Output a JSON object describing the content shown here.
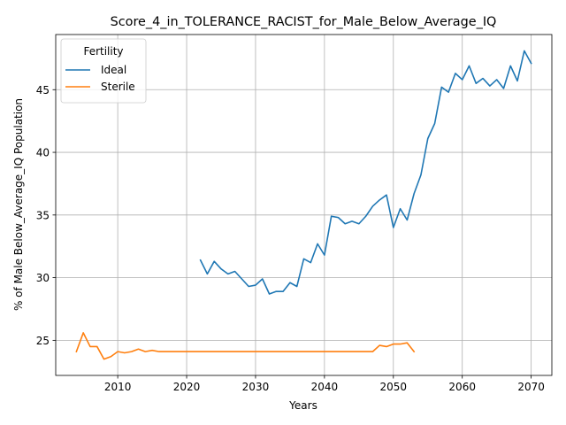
{
  "chart_data": {
    "type": "line",
    "title": "Score_4_in_TOLERANCE_RACIST_for_Male_Below_Average_IQ",
    "xlabel": "Years",
    "ylabel": "% of Male Below_Average_IQ Population",
    "xlim": [
      2001,
      2073
    ],
    "ylim": [
      22.2,
      49.4
    ],
    "xticks": [
      2010,
      2020,
      2030,
      2040,
      2050,
      2060,
      2070
    ],
    "yticks": [
      25,
      30,
      35,
      40,
      45
    ],
    "grid": true,
    "legend": {
      "title": "Fertility",
      "placement": "upper-left"
    },
    "series": [
      {
        "name": "Ideal",
        "color": "#1f77b4",
        "x": [
          2022,
          2023,
          2024,
          2025,
          2026,
          2027,
          2028,
          2029,
          2030,
          2031,
          2032,
          2033,
          2034,
          2035,
          2036,
          2037,
          2038,
          2039,
          2040,
          2041,
          2042,
          2043,
          2044,
          2045,
          2046,
          2047,
          2048,
          2049,
          2050,
          2051,
          2052,
          2053,
          2054,
          2055,
          2056,
          2057,
          2058,
          2059,
          2060,
          2061,
          2062,
          2063,
          2064,
          2065,
          2066,
          2067,
          2068,
          2069,
          2070
        ],
        "values": [
          31.4,
          30.3,
          31.3,
          30.7,
          30.3,
          30.5,
          29.9,
          29.3,
          29.4,
          29.9,
          28.7,
          28.9,
          28.9,
          29.6,
          29.3,
          31.5,
          31.2,
          32.7,
          31.8,
          34.9,
          34.8,
          34.3,
          34.5,
          34.3,
          34.9,
          35.7,
          36.2,
          36.6,
          34.0,
          35.5,
          34.6,
          36.7,
          38.2,
          41.1,
          42.3,
          45.2,
          44.8,
          46.3,
          45.8,
          46.9,
          45.5,
          45.9,
          45.3,
          45.8,
          45.1,
          46.9,
          45.7,
          48.1,
          47.1
        ]
      },
      {
        "name": "Sterile",
        "color": "#ff7f0e",
        "x": [
          2004,
          2005,
          2006,
          2007,
          2008,
          2009,
          2010,
          2011,
          2012,
          2013,
          2014,
          2015,
          2016,
          2017,
          2018,
          2019,
          2020,
          2021,
          2022,
          2023,
          2024,
          2025,
          2026,
          2027,
          2028,
          2029,
          2030,
          2031,
          2032,
          2033,
          2034,
          2035,
          2036,
          2037,
          2038,
          2039,
          2040,
          2041,
          2042,
          2043,
          2044,
          2045,
          2046,
          2047,
          2048,
          2049,
          2050,
          2051,
          2052,
          2053
        ],
        "values": [
          24.1,
          25.6,
          24.5,
          24.5,
          23.5,
          23.7,
          24.1,
          24.0,
          24.1,
          24.3,
          24.1,
          24.2,
          24.1,
          24.1,
          24.1,
          24.1,
          24.1,
          24.1,
          24.1,
          24.1,
          24.1,
          24.1,
          24.1,
          24.1,
          24.1,
          24.1,
          24.1,
          24.1,
          24.1,
          24.1,
          24.1,
          24.1,
          24.1,
          24.1,
          24.1,
          24.1,
          24.1,
          24.1,
          24.1,
          24.1,
          24.1,
          24.1,
          24.1,
          24.1,
          24.6,
          24.5,
          24.7,
          24.7,
          24.8,
          24.1
        ]
      }
    ]
  }
}
